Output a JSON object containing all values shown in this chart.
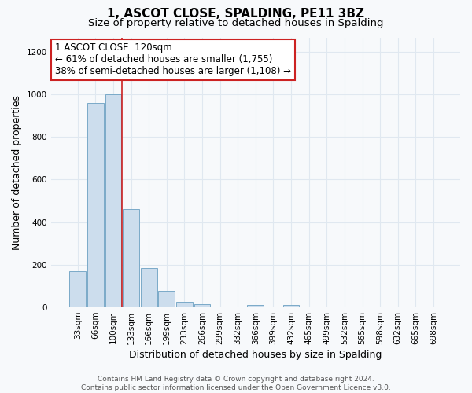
{
  "title": "1, ASCOT CLOSE, SPALDING, PE11 3BZ",
  "subtitle": "Size of property relative to detached houses in Spalding",
  "xlabel": "Distribution of detached houses by size in Spalding",
  "ylabel": "Number of detached properties",
  "bar_labels": [
    "33sqm",
    "66sqm",
    "100sqm",
    "133sqm",
    "166sqm",
    "199sqm",
    "233sqm",
    "266sqm",
    "299sqm",
    "332sqm",
    "366sqm",
    "399sqm",
    "432sqm",
    "465sqm",
    "499sqm",
    "532sqm",
    "565sqm",
    "598sqm",
    "632sqm",
    "665sqm",
    "698sqm"
  ],
  "bar_values": [
    170,
    960,
    1000,
    460,
    185,
    75,
    25,
    15,
    0,
    0,
    10,
    0,
    10,
    0,
    0,
    0,
    0,
    0,
    0,
    0,
    0
  ],
  "bar_color": "#ccdded",
  "bar_edge_color": "#7aaac8",
  "ylim": [
    0,
    1270
  ],
  "yticks": [
    0,
    200,
    400,
    600,
    800,
    1000,
    1200
  ],
  "red_line_x": 2.5,
  "annotation_line1": "1 ASCOT CLOSE: 120sqm",
  "annotation_line2": "← 61% of detached houses are smaller (1,755)",
  "annotation_line3": "38% of semi-detached houses are larger (1,108) →",
  "annotation_box_facecolor": "#ffffff",
  "annotation_box_edgecolor": "#cc2222",
  "footer_text": "Contains HM Land Registry data © Crown copyright and database right 2024.\nContains public sector information licensed under the Open Government Licence v3.0.",
  "bg_color": "#f7f9fb",
  "grid_color": "#e0e8f0",
  "title_fontsize": 11,
  "subtitle_fontsize": 9.5,
  "axis_label_fontsize": 9,
  "tick_fontsize": 7.5,
  "annotation_fontsize": 8.5,
  "footer_fontsize": 6.5
}
